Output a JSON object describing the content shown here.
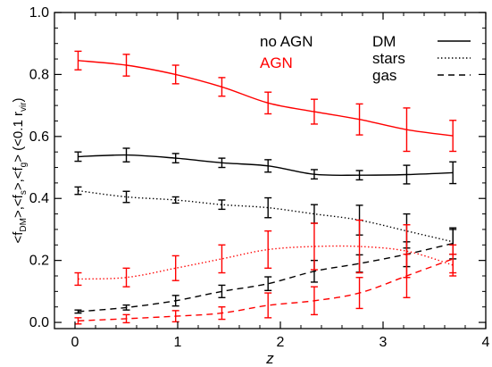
{
  "chart_data": {
    "type": "line",
    "xlabel": "z",
    "ylabel_parts": [
      "<f",
      "DM",
      ">,<f",
      "s",
      ">,<f",
      "g",
      "> (<0.1 r",
      "vir",
      ")"
    ],
    "xlim": [
      -0.2,
      4.0
    ],
    "ylim": [
      -0.02,
      1.0
    ],
    "xticks": [
      0,
      1,
      2,
      3,
      4
    ],
    "yticks": [
      0.0,
      0.2,
      0.4,
      0.6,
      0.8,
      1.0
    ],
    "ytick_labels": [
      "0.0",
      "0.2",
      "0.4",
      "0.6",
      "0.8",
      "1.0"
    ],
    "grid": false,
    "x": [
      0.03,
      0.5,
      0.98,
      1.43,
      1.88,
      2.33,
      2.77,
      3.23,
      3.68
    ],
    "legend_models": [
      {
        "label": "no AGN",
        "color": "#000000"
      },
      {
        "label": "AGN",
        "color": "#ff0000"
      }
    ],
    "legend_components": [
      {
        "label": "DM",
        "dash": "solid"
      },
      {
        "label": "stars",
        "dash": "dotted"
      },
      {
        "label": "gas",
        "dash": "dashed"
      }
    ],
    "series": [
      {
        "model": "no AGN",
        "component": "DM",
        "color": "#000000",
        "dash": "solid",
        "values": [
          0.535,
          0.54,
          0.53,
          0.515,
          0.505,
          0.478,
          0.475,
          0.477,
          0.483
        ],
        "errors": [
          0.015,
          0.022,
          0.015,
          0.015,
          0.02,
          0.015,
          0.015,
          0.03,
          0.035
        ]
      },
      {
        "model": "no AGN",
        "component": "stars",
        "color": "#000000",
        "dash": "dotted",
        "values": [
          0.425,
          0.405,
          0.395,
          0.38,
          0.37,
          0.35,
          0.33,
          0.295,
          0.26
        ],
        "errors": [
          0.012,
          0.018,
          0.01,
          0.015,
          0.032,
          0.03,
          0.048,
          0.055,
          0.04
        ]
      },
      {
        "model": "no AGN",
        "component": "gas",
        "color": "#000000",
        "dash": "dashed",
        "values": [
          0.035,
          0.048,
          0.07,
          0.1,
          0.125,
          0.165,
          0.19,
          0.22,
          0.255
        ],
        "errors": [
          0.005,
          0.008,
          0.017,
          0.02,
          0.022,
          0.035,
          0.028,
          0.04,
          0.05
        ]
      },
      {
        "model": "AGN",
        "component": "DM",
        "color": "#ff0000",
        "dash": "solid",
        "values": [
          0.845,
          0.83,
          0.8,
          0.76,
          0.708,
          0.68,
          0.655,
          0.622,
          0.602
        ],
        "errors": [
          0.03,
          0.035,
          0.03,
          0.03,
          0.035,
          0.04,
          0.05,
          0.07,
          0.05
        ]
      },
      {
        "model": "AGN",
        "component": "stars",
        "color": "#ff0000",
        "dash": "dotted",
        "values": [
          0.14,
          0.145,
          0.175,
          0.205,
          0.235,
          0.245,
          0.245,
          0.23,
          0.185
        ],
        "errors": [
          0.02,
          0.03,
          0.04,
          0.045,
          0.06,
          0.075,
          0.085,
          0.085,
          0.035
        ]
      },
      {
        "model": "AGN",
        "component": "gas",
        "color": "#ff0000",
        "dash": "dashed",
        "values": [
          0.005,
          0.012,
          0.02,
          0.03,
          0.055,
          0.07,
          0.095,
          0.15,
          0.205
        ],
        "errors": [
          0.01,
          0.013,
          0.018,
          0.02,
          0.04,
          0.045,
          0.05,
          0.07,
          0.045
        ]
      }
    ]
  }
}
